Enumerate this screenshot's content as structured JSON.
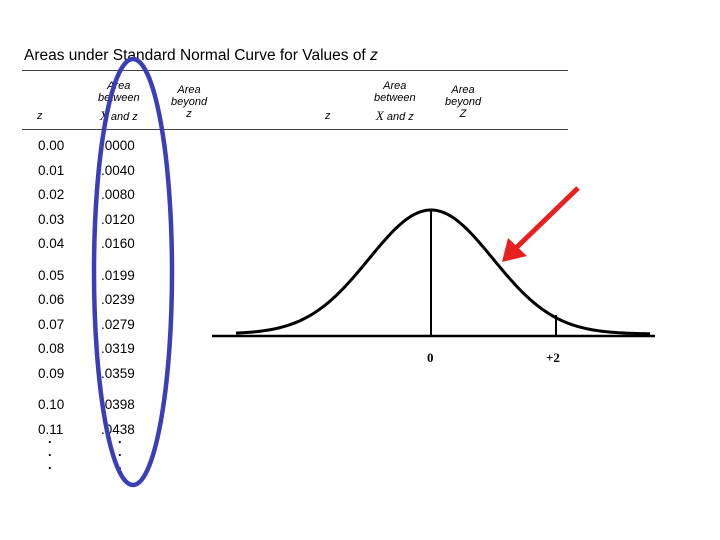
{
  "title": {
    "text": "Areas under Standard Normal Curve for Values of ",
    "var": "z"
  },
  "table": {
    "headers": {
      "z_left": "z",
      "area_between_line1": "Area",
      "area_between_line2": "between",
      "area_between_x": "X",
      "area_between_and": "and z",
      "area_beyond_line1": "Area",
      "area_beyond_line2": "beyond",
      "area_beyond_line3": "z",
      "z_right": "z",
      "area_beyond_right_line3": "Z"
    },
    "rows": [
      {
        "z": "0.00",
        "area": ".0000"
      },
      {
        "z": "0.01",
        "area": ".0040"
      },
      {
        "z": "0.02",
        "area": ".0080"
      },
      {
        "z": "0.03",
        "area": ".0120"
      },
      {
        "z": "0.04",
        "area": ".0160"
      },
      {
        "z": "0.05",
        "area": ".0199"
      },
      {
        "z": "0.06",
        "area": ".0239"
      },
      {
        "z": "0.07",
        "area": ".0279"
      },
      {
        "z": "0.08",
        "area": ".0319"
      },
      {
        "z": "0.09",
        "area": ".0359"
      },
      {
        "z": "0.10",
        "area": ".0398"
      },
      {
        "z": "0.11",
        "area": ".0438"
      }
    ],
    "continuation": "."
  },
  "curve": {
    "mean_label": "0",
    "mark_label": "+2"
  },
  "colors": {
    "highlight_ellipse": "#3a3fb8",
    "arrow": "#e8201f",
    "curve": "#000000"
  }
}
